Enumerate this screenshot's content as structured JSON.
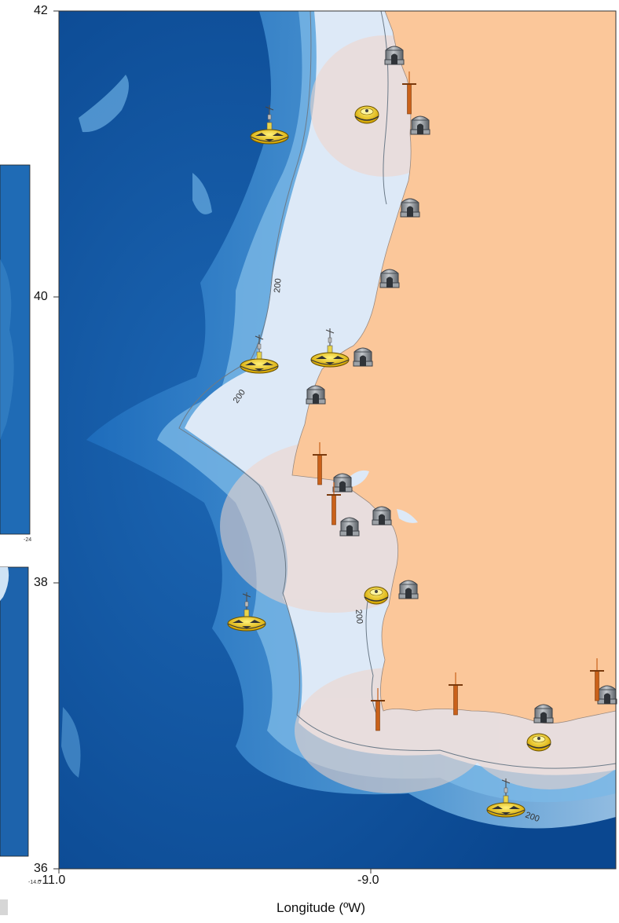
{
  "map": {
    "x_axis": {
      "label": "Longitude (ºW)",
      "ticks": [
        "-11.0",
        "-9.0"
      ],
      "range": [
        -11.0,
        -7.3
      ]
    },
    "y_axis": {
      "ticks": [
        "42",
        "40",
        "38",
        "36"
      ],
      "range": [
        36,
        42
      ]
    },
    "contour_labels": [
      "200",
      "200",
      "200",
      "200"
    ],
    "inset_labels": [
      "-24",
      "-14.0"
    ],
    "colors": {
      "land": "#fbc79a",
      "shelf": "#dde9f7",
      "deep_ocean": "#0d4f9b",
      "mid_ocean": "#2e7cc4",
      "coverage_zone": "#f0d4c8",
      "buoy": "#f2c400",
      "tide_gauge": "#c9611a",
      "station": "#8a8f96"
    },
    "icons": {
      "shore_station": "hut-icon",
      "tide_gauge": "tide-gauge-mast-icon",
      "surface_buoy": "surface-buoy-icon",
      "met_buoy": "met-buoy-with-mast-icon"
    }
  }
}
